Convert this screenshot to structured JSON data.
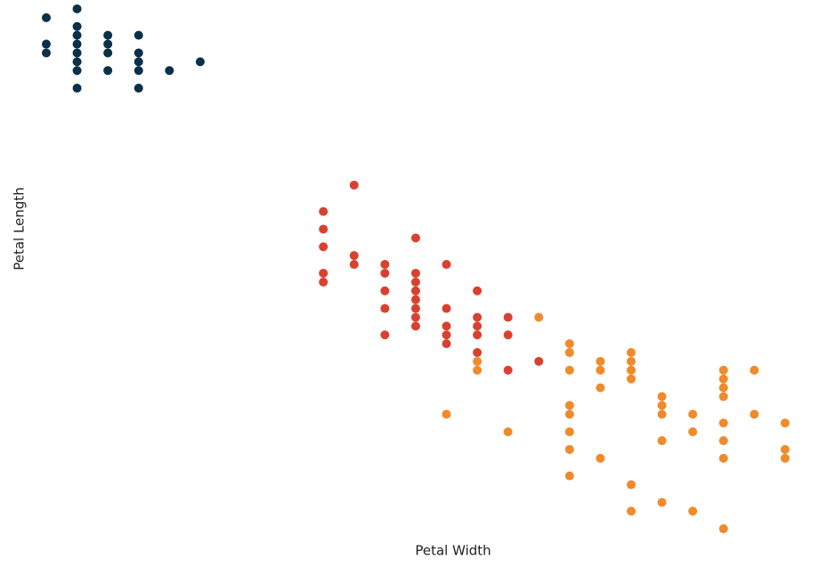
{
  "chart_data": {
    "type": "scatter",
    "x_label": "Petal Width",
    "y_label": "Petal Length",
    "xlim": [
      0.05,
      2.55
    ],
    "ylim": [
      0.95,
      6.95
    ],
    "invert_y": true,
    "series": [
      {
        "color": "#0b3049",
        "x": [
          0.1,
          0.1,
          0.1,
          0.2,
          0.2,
          0.2,
          0.2,
          0.2,
          0.2,
          0.2,
          0.2,
          0.3,
          0.3,
          0.3,
          0.3,
          0.4,
          0.4,
          0.4,
          0.4,
          0.4,
          0.5,
          0.6
        ],
        "values": [
          1.1,
          1.4,
          1.5,
          1.0,
          1.2,
          1.3,
          1.4,
          1.5,
          1.6,
          1.7,
          1.9,
          1.3,
          1.4,
          1.5,
          1.7,
          1.3,
          1.5,
          1.6,
          1.7,
          1.9,
          1.7,
          1.6
        ]
      },
      {
        "color": "#d9412f",
        "x": [
          1.0,
          1.0,
          1.0,
          1.0,
          1.0,
          1.1,
          1.1,
          1.1,
          1.2,
          1.2,
          1.2,
          1.2,
          1.2,
          1.3,
          1.3,
          1.3,
          1.3,
          1.3,
          1.3,
          1.3,
          1.3,
          1.4,
          1.4,
          1.4,
          1.4,
          1.4,
          1.5,
          1.5,
          1.5,
          1.5,
          1.5,
          1.6,
          1.6,
          1.6,
          1.7
        ],
        "values": [
          3.3,
          3.5,
          3.7,
          4.0,
          4.1,
          3.0,
          3.8,
          3.9,
          3.9,
          4.0,
          4.2,
          4.4,
          4.7,
          3.6,
          4.0,
          4.1,
          4.2,
          4.3,
          4.4,
          4.5,
          4.6,
          3.9,
          4.4,
          4.6,
          4.7,
          4.8,
          4.2,
          4.5,
          4.6,
          4.7,
          4.9,
          4.5,
          4.7,
          5.1,
          5.0
        ]
      },
      {
        "color": "#f08a2a",
        "x": [
          1.4,
          1.5,
          1.5,
          1.6,
          1.7,
          1.8,
          1.8,
          1.8,
          1.8,
          1.8,
          1.8,
          1.8,
          1.8,
          1.9,
          1.9,
          1.9,
          1.9,
          2.0,
          2.0,
          2.0,
          2.0,
          2.0,
          2.0,
          2.1,
          2.1,
          2.1,
          2.1,
          2.1,
          2.2,
          2.2,
          2.2,
          2.3,
          2.3,
          2.3,
          2.3,
          2.3,
          2.3,
          2.3,
          2.3,
          2.4,
          2.4,
          2.5,
          2.5,
          2.5
        ],
        "values": [
          5.6,
          5.0,
          5.1,
          5.8,
          4.5,
          4.8,
          4.9,
          5.1,
          5.5,
          5.6,
          5.8,
          6.0,
          6.3,
          5.0,
          5.1,
          5.3,
          6.1,
          4.9,
          5.0,
          5.1,
          5.2,
          6.4,
          6.7,
          5.4,
          5.5,
          5.6,
          5.9,
          6.6,
          5.6,
          5.8,
          6.7,
          5.1,
          5.2,
          5.3,
          5.4,
          5.7,
          5.9,
          6.1,
          6.9,
          5.1,
          5.6,
          5.7,
          6.0,
          6.1
        ]
      }
    ]
  }
}
